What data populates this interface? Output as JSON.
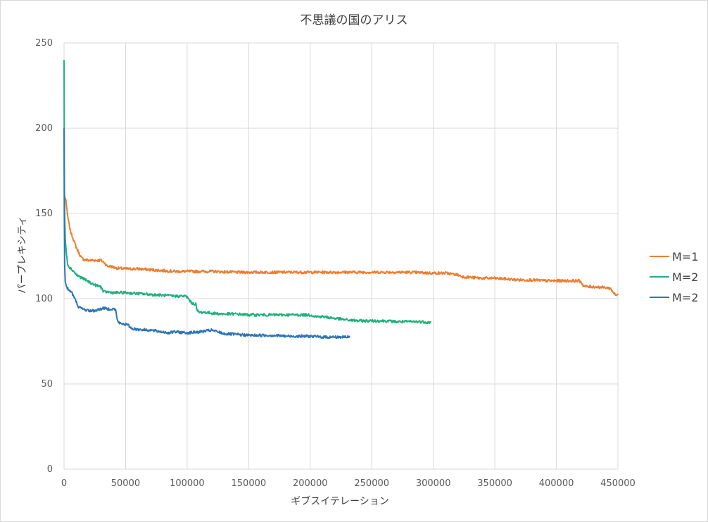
{
  "chart_data": {
    "type": "line",
    "title": "不思議の国のアリス",
    "xlabel": "ギブスイテレーション",
    "ylabel": "パープレキシティ",
    "xlim": [
      0,
      450000
    ],
    "ylim": [
      0,
      250
    ],
    "x_ticks": [
      "0",
      "50000",
      "100000",
      "150000",
      "200000",
      "250000",
      "300000",
      "350000",
      "400000",
      "450000"
    ],
    "y_ticks": [
      "0",
      "50",
      "100",
      "150",
      "200",
      "250"
    ],
    "grid": true,
    "legend_position": "right",
    "series": [
      {
        "name": "M=1",
        "color": "#ED7D31",
        "x": [
          0,
          500,
          1500,
          3000,
          5000,
          8000,
          10000,
          12000,
          14000,
          16000,
          20000,
          25000,
          30000,
          33000,
          35000,
          38000,
          42000,
          50000,
          60000,
          70000,
          80000,
          90000,
          100000,
          120000,
          140000,
          160000,
          180000,
          200000,
          220000,
          240000,
          260000,
          280000,
          300000,
          310000,
          320000,
          323000,
          330000,
          340000,
          350000,
          360000,
          370000,
          380000,
          390000,
          400000,
          410000,
          418000,
          420000,
          422000,
          425000,
          430000,
          440000,
          444000,
          446000,
          448000,
          450000
        ],
        "y": [
          161,
          160,
          158,
          148,
          140,
          134,
          130,
          127,
          124,
          123,
          122.5,
          122.5,
          122.5,
          121,
          119,
          119,
          118,
          117.5,
          117.5,
          117,
          116.5,
          116,
          116,
          116,
          115.5,
          115.5,
          115.5,
          115.5,
          115.5,
          115.5,
          115.5,
          115.5,
          115,
          115,
          114,
          113,
          112.5,
          112,
          112,
          111.5,
          111,
          111,
          110.5,
          110.5,
          110.5,
          110.5,
          110,
          107.5,
          107,
          107,
          106.5,
          106,
          104,
          102,
          102
        ]
      },
      {
        "name": "M=2",
        "color": "#22B07D",
        "x": [
          0,
          200,
          500,
          1000,
          2000,
          3000,
          5000,
          8000,
          10000,
          15000,
          20000,
          25000,
          30000,
          32000,
          35000,
          40000,
          50000,
          60000,
          70000,
          80000,
          90000,
          98000,
          100000,
          103000,
          105000,
          107000,
          108000,
          110000,
          115000,
          120000,
          130000,
          140000,
          150000,
          160000,
          170000,
          180000,
          190000,
          200000,
          205000,
          210000,
          215000,
          220000,
          230000,
          240000,
          250000,
          260000,
          270000,
          280000,
          290000,
          298000
        ],
        "y": [
          240,
          180,
          150,
          135,
          126,
          120,
          118,
          116,
          114,
          112,
          110,
          108,
          107,
          104,
          104,
          103.5,
          103.5,
          103,
          102.5,
          102,
          101.5,
          101.5,
          101,
          98,
          97,
          97,
          93,
          92,
          92,
          91.5,
          91,
          91,
          90.5,
          90.5,
          90.5,
          90.5,
          90.5,
          90.5,
          89.5,
          89.5,
          89,
          88.5,
          87.5,
          87,
          87,
          87,
          86.5,
          86.5,
          86.5,
          86
        ]
      },
      {
        "name": "M=2",
        "color": "#2E75B6",
        "x": [
          0,
          200,
          500,
          1000,
          2000,
          4000,
          6000,
          8000,
          10000,
          12000,
          15000,
          20000,
          25000,
          30000,
          32000,
          35000,
          40000,
          42000,
          43000,
          45000,
          50000,
          52000,
          55000,
          60000,
          70000,
          80000,
          85000,
          90000,
          100000,
          110000,
          115000,
          120000,
          125000,
          130000,
          140000,
          150000,
          160000,
          170000,
          180000,
          190000,
          200000,
          210000,
          220000,
          230000,
          232000
        ],
        "y": [
          200,
          150,
          120,
          110,
          107,
          105,
          104,
          101,
          98,
          95,
          94,
          93,
          93,
          94,
          94.5,
          94,
          94,
          93.5,
          88,
          85.5,
          85,
          84.5,
          82.5,
          82,
          81.5,
          80.5,
          80,
          80.5,
          80,
          80.5,
          81,
          81.5,
          80.5,
          79.5,
          79,
          78.5,
          78.5,
          78.5,
          78,
          78,
          78,
          77.5,
          77.5,
          77.5,
          77.5
        ]
      }
    ]
  }
}
